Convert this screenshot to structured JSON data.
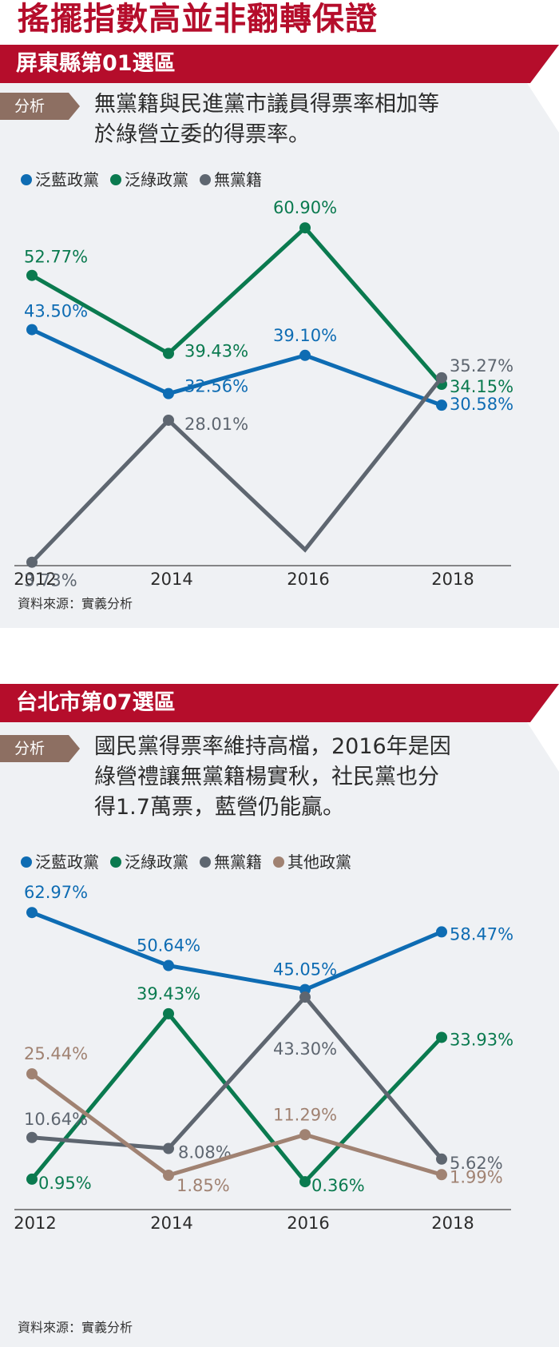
{
  "page_title": "搖擺指數高並非翻轉保證",
  "colors": {
    "blue": "#0e6cb3",
    "green": "#0a7a4f",
    "gray": "#5e6670",
    "brown": "#a08272",
    "banner": "#b50d2b",
    "tag": "#8d6f62",
    "panel_bg": "#eff1f4"
  },
  "panels": [
    {
      "title": "屏東縣第01選區",
      "tag": "分析",
      "analysis_lines": [
        "無黨籍與民進黨市議員得票率相加等",
        "於綠營立委的得票率。"
      ],
      "legend": [
        "泛藍政黨",
        "泛綠政黨",
        "無黨籍"
      ],
      "source": "資料來源：實義分析"
    },
    {
      "title": "台北市第07選區",
      "tag": "分析",
      "analysis_lines": [
        "國民黨得票率維持高檔，2016年是因",
        "綠營禮讓無黨籍楊實秋，社民黨也分",
        "得1.7萬票，藍營仍能贏。"
      ],
      "legend": [
        "泛藍政黨",
        "泛綠政黨",
        "無黨籍",
        "其他政黨"
      ],
      "source": "資料來源：實義分析"
    }
  ],
  "chart_data": [
    {
      "type": "line",
      "title": "屏東縣第01選區",
      "x": [
        "2012",
        "2014",
        "2016",
        "2018"
      ],
      "ylim": [
        0,
        70
      ],
      "grid": false,
      "legend_position": "top-left",
      "series": [
        {
          "name": "泛藍政黨",
          "color": "#0e6cb3",
          "values": [
            43.5,
            32.56,
            39.1,
            30.58
          ],
          "labels": [
            "43.50%",
            "32.56%",
            "39.10%",
            "30.58%"
          ]
        },
        {
          "name": "泛綠政黨",
          "color": "#0a7a4f",
          "values": [
            52.77,
            39.43,
            60.9,
            34.15
          ],
          "labels": [
            "52.77%",
            "39.43%",
            "60.90%",
            "34.15%"
          ]
        },
        {
          "name": "無黨籍",
          "color": "#5e6670",
          "values": [
            3.73,
            28.01,
            null,
            35.27
          ],
          "labels": [
            "3.73%",
            "28.01%",
            "",
            "35.27%"
          ]
        }
      ]
    },
    {
      "type": "line",
      "title": "台北市第07選區",
      "x": [
        "2012",
        "2014",
        "2016",
        "2018"
      ],
      "ylim": [
        0,
        70
      ],
      "grid": false,
      "legend_position": "top-left",
      "series": [
        {
          "name": "泛藍政黨",
          "color": "#0e6cb3",
          "values": [
            62.97,
            50.64,
            45.05,
            58.47
          ],
          "labels": [
            "62.97%",
            "50.64%",
            "45.05%",
            "58.47%"
          ]
        },
        {
          "name": "泛綠政黨",
          "color": "#0a7a4f",
          "values": [
            0.95,
            39.43,
            0.36,
            33.93
          ],
          "labels": [
            "0.95%",
            "39.43%",
            "0.36%",
            "33.93%"
          ]
        },
        {
          "name": "無黨籍",
          "color": "#5e6670",
          "values": [
            10.64,
            8.08,
            43.3,
            5.62
          ],
          "labels": [
            "10.64%",
            "8.08%",
            "43.30%",
            "5.62%"
          ]
        },
        {
          "name": "其他政黨",
          "color": "#a08272",
          "values": [
            25.44,
            1.85,
            11.29,
            1.99
          ],
          "labels": [
            "25.44%",
            "1.85%",
            "11.29%",
            "1.99%"
          ]
        }
      ]
    }
  ]
}
